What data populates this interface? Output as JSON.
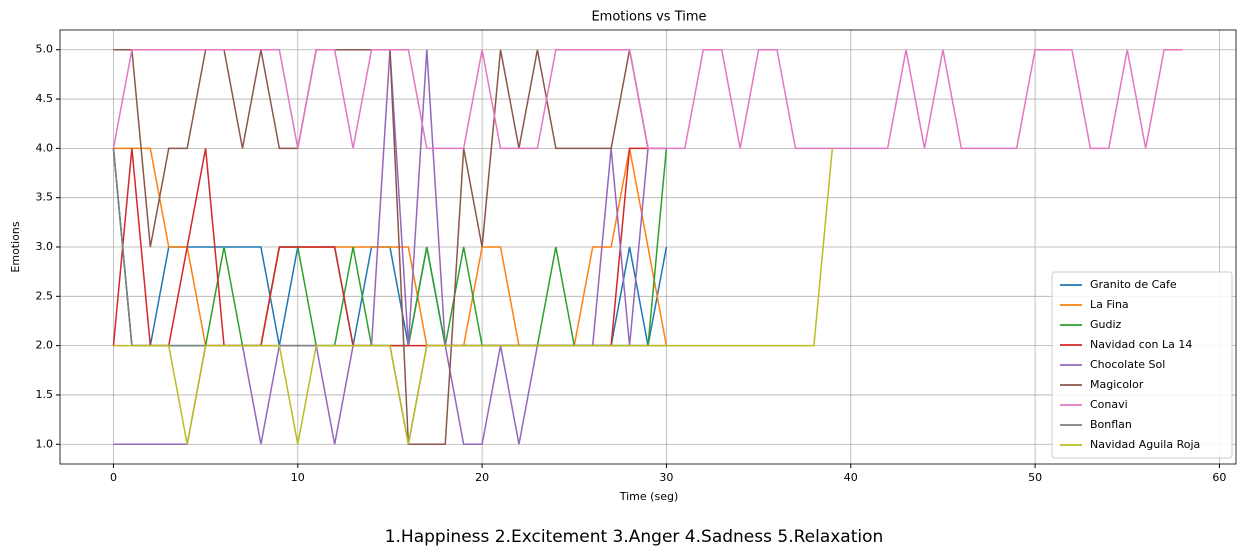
{
  "chart_data": {
    "type": "line",
    "title": "Emotions vs Time",
    "xlabel": "Time (seg)",
    "ylabel": "Emotions",
    "caption": "1.Happiness 2.Excitement 3.Anger 4.Sadness 5.Relaxation",
    "x": [
      0,
      1,
      2,
      3,
      4,
      5,
      6,
      7,
      8,
      9,
      10,
      11,
      12,
      13,
      14,
      15,
      16,
      17,
      18,
      19,
      20,
      21,
      22,
      23,
      24,
      25,
      26,
      27,
      28,
      29,
      30,
      31,
      32,
      33,
      34,
      35,
      36,
      37,
      38,
      39,
      40,
      41,
      42,
      43,
      44,
      45,
      46,
      47,
      48,
      49,
      50,
      51,
      52,
      53,
      54,
      55,
      56,
      57,
      58
    ],
    "xlim": [
      -2.9,
      60.9
    ],
    "xticks": [
      0,
      10,
      20,
      30,
      40,
      50,
      60
    ],
    "ylim": [
      0.8,
      5.2
    ],
    "yticks": [
      {
        "value": 1,
        "label": "1.0"
      },
      {
        "value": 1.5,
        "label": "1.5"
      },
      {
        "value": 2,
        "label": "2.0"
      },
      {
        "value": 2.5,
        "label": "2.5"
      },
      {
        "value": 3,
        "label": "3.0"
      },
      {
        "value": 3.5,
        "label": "3.5"
      },
      {
        "value": 4,
        "label": "4.0"
      },
      {
        "value": 4.5,
        "label": "4.5"
      },
      {
        "value": 5,
        "label": "5.0"
      }
    ],
    "grid": true,
    "legend": "lower right",
    "series": [
      {
        "name": "Granito de Cafe",
        "color": "#1f77b4",
        "values": [
          4,
          2,
          2,
          3,
          3,
          3,
          3,
          3,
          3,
          2,
          3,
          3,
          3,
          2,
          3,
          3,
          2,
          3,
          2,
          2,
          2,
          2,
          2,
          2,
          2,
          2,
          2,
          2,
          3,
          2,
          3,
          null,
          null,
          null,
          null,
          null,
          null,
          null,
          null,
          null,
          null,
          null,
          null,
          null,
          null,
          null,
          null,
          null,
          null,
          null,
          null,
          null,
          null,
          null,
          null,
          null,
          null,
          null,
          null
        ]
      },
      {
        "name": "La Fina",
        "color": "#ff7f0e",
        "values": [
          4,
          4,
          4,
          3,
          3,
          2,
          2,
          2,
          2,
          3,
          3,
          3,
          3,
          3,
          3,
          3,
          3,
          2,
          2,
          2,
          3,
          3,
          2,
          2,
          2,
          2,
          3,
          3,
          4,
          3,
          2,
          null,
          null,
          null,
          null,
          null,
          null,
          null,
          null,
          null,
          null,
          null,
          null,
          null,
          null,
          null,
          null,
          null,
          null,
          null,
          null,
          null,
          null,
          null,
          null,
          null,
          null,
          null,
          null
        ]
      },
      {
        "name": "Gudiz",
        "color": "#2ca02c",
        "values": [
          4,
          2,
          2,
          2,
          2,
          2,
          3,
          2,
          2,
          3,
          3,
          2,
          2,
          3,
          2,
          2,
          2,
          3,
          2,
          3,
          2,
          2,
          2,
          2,
          3,
          2,
          2,
          2,
          2,
          2,
          4,
          null,
          null,
          null,
          null,
          null,
          null,
          null,
          null,
          null,
          null,
          null,
          null,
          null,
          null,
          null,
          null,
          null,
          null,
          null,
          null,
          null,
          null,
          null,
          null,
          null,
          null,
          null,
          null
        ]
      },
      {
        "name": "Navidad con La 14",
        "color": "#d62728",
        "values": [
          2,
          4,
          2,
          2,
          3,
          4,
          2,
          2,
          2,
          3,
          3,
          3,
          3,
          2,
          2,
          2,
          2,
          2,
          2,
          2,
          2,
          2,
          2,
          2,
          2,
          2,
          2,
          2,
          4,
          4,
          null,
          null,
          null,
          null,
          null,
          null,
          null,
          null,
          null,
          null,
          null,
          null,
          null,
          null,
          null,
          null,
          null,
          null,
          null,
          null,
          null,
          null,
          null,
          null,
          null,
          null,
          null,
          null,
          null
        ]
      },
      {
        "name": "Chocolate Sol",
        "color": "#9467bd",
        "values": [
          1,
          1,
          1,
          1,
          1,
          2,
          2,
          2,
          1,
          2,
          2,
          2,
          1,
          2,
          2,
          5,
          2,
          5,
          2,
          1,
          1,
          2,
          1,
          2,
          2,
          2,
          2,
          4,
          2,
          4,
          null,
          null,
          null,
          null,
          null,
          null,
          null,
          null,
          null,
          null,
          null,
          null,
          null,
          null,
          null,
          null,
          null,
          null,
          null,
          null,
          null,
          null,
          null,
          null,
          null,
          null,
          null,
          null,
          null
        ]
      },
      {
        "name": "Magicolor",
        "color": "#8c564b",
        "values": [
          5,
          5,
          3,
          4,
          4,
          5,
          5,
          4,
          5,
          4,
          4,
          5,
          5,
          5,
          5,
          5,
          1,
          1,
          1,
          4,
          3,
          5,
          4,
          5,
          4,
          4,
          4,
          4,
          5,
          4,
          4,
          null,
          null,
          null,
          null,
          null,
          null,
          null,
          null,
          null,
          null,
          null,
          null,
          null,
          null,
          null,
          null,
          null,
          null,
          null,
          null,
          null,
          null,
          null,
          null,
          null,
          null,
          null,
          null
        ]
      },
      {
        "name": "Conavi",
        "color": "#e377c2",
        "values": [
          4,
          5,
          5,
          5,
          5,
          5,
          5,
          5,
          5,
          5,
          4,
          5,
          5,
          4,
          5,
          5,
          5,
          4,
          4,
          4,
          5,
          4,
          4,
          4,
          5,
          5,
          5,
          5,
          5,
          4,
          4,
          4,
          5,
          5,
          4,
          5,
          5,
          4,
          4,
          4,
          4,
          4,
          4,
          5,
          4,
          5,
          4,
          4,
          4,
          4,
          5,
          5,
          5,
          4,
          4,
          5,
          4,
          5,
          5
        ]
      },
      {
        "name": "Bonflan",
        "color": "#7f7f7f",
        "values": [
          4,
          2,
          2,
          2,
          2,
          2,
          2,
          2,
          2,
          2,
          2,
          2,
          2,
          2,
          2,
          2,
          1,
          2,
          2,
          2,
          2,
          2,
          2,
          2,
          2,
          2,
          2,
          2,
          2,
          2,
          2,
          null,
          null,
          null,
          null,
          null,
          null,
          null,
          null,
          null,
          null,
          null,
          null,
          null,
          null,
          null,
          null,
          null,
          null,
          null,
          null,
          null,
          null,
          null,
          null,
          null,
          null,
          null,
          null
        ]
      },
      {
        "name": "Navidad Aguila Roja",
        "color": "#bcbd22",
        "values": [
          2,
          2,
          2,
          2,
          1,
          2,
          2,
          2,
          2,
          2,
          1,
          2,
          2,
          2,
          2,
          2,
          1,
          2,
          2,
          2,
          2,
          2,
          2,
          2,
          2,
          2,
          2,
          2,
          2,
          2,
          2,
          2,
          2,
          2,
          2,
          2,
          2,
          2,
          2,
          4,
          null,
          null,
          null,
          null,
          null,
          null,
          null,
          null,
          null,
          null,
          null,
          null,
          null,
          null,
          null,
          null,
          null,
          null,
          null
        ]
      }
    ]
  }
}
